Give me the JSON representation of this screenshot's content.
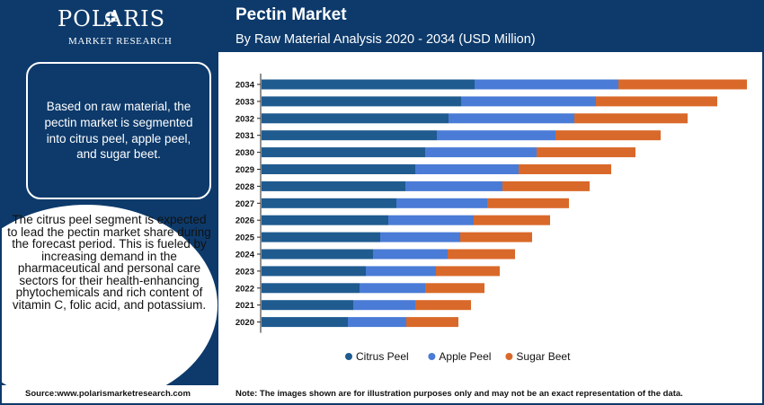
{
  "logo": {
    "name": "POLARIS",
    "tagline": "MARKET RESEARCH"
  },
  "header": {
    "title": "Pectin Market",
    "subtitle": "By Raw Material Analysis 2020 - 2034 (USD Million)"
  },
  "left_panel": {
    "raw_material_text": "Based on raw material, the pectin market is segmented into citrus peel, apple peel, and sugar beet.",
    "circle_text": "The citrus peel segment is expected to lead the pectin market share during the forecast period. This is fueled by increasing demand in the pharmaceutical and personal care sectors for their health-enhancing phytochemicals and rich content of vitamin C, folic acid, and potassium."
  },
  "footer": {
    "source": "Source:www.polarismarketresearch.com",
    "note": "Note: The images shown are for illustration purposes only and may not be an exact representation of the data."
  },
  "colors": {
    "navy": "#0d3a6b",
    "citrus_peel": "#1f5b8f",
    "apple_peel": "#4a7bd6",
    "sugar_beet": "#d9692a"
  },
  "chart_data": {
    "type": "bar",
    "orientation": "horizontal",
    "stacked": true,
    "categories": [
      "2034",
      "2033",
      "2032",
      "2031",
      "2030",
      "2029",
      "2028",
      "2027",
      "2026",
      "2025",
      "2024",
      "2023",
      "2022",
      "2021",
      "2020"
    ],
    "series": [
      {
        "name": "Citrus Peel",
        "color": "#1f5b8f",
        "values": [
          237,
          222,
          208,
          195,
          182,
          171,
          160,
          150,
          141,
          132,
          124,
          116,
          109,
          102,
          96
        ]
      },
      {
        "name": "Apple Peel",
        "color": "#4a7bd6",
        "values": [
          160,
          150,
          140,
          132,
          124,
          115,
          108,
          101,
          95,
          89,
          83,
          78,
          73,
          69,
          65
        ]
      },
      {
        "name": "Sugar Beet",
        "color": "#d9692a",
        "values": [
          143,
          135,
          126,
          117,
          110,
          103,
          97,
          91,
          85,
          80,
          75,
          71,
          66,
          62,
          58
        ]
      }
    ],
    "legend_position": "bottom",
    "grid": false,
    "xlabel": "",
    "ylabel": ""
  }
}
